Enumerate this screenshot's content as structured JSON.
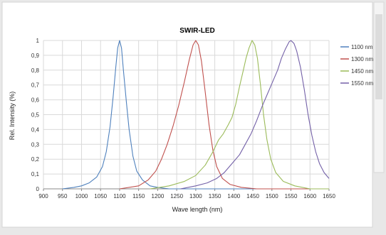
{
  "chart_data": {
    "type": "line",
    "title": "SWIR-LED",
    "xlabel": "Wave length (nm)",
    "ylabel": "Rel. Intensity (%)",
    "xlim": [
      900,
      1650
    ],
    "ylim": [
      0,
      1
    ],
    "x_ticks": [
      900,
      950,
      1000,
      1050,
      1100,
      1150,
      1200,
      1250,
      1300,
      1350,
      1400,
      1450,
      1500,
      1550,
      1600,
      1650
    ],
    "y_ticks": [
      "0",
      "0,1",
      "0,2",
      "0,3",
      "0,4",
      "0,5",
      "0,6",
      "0,7",
      "0,8",
      "0,9",
      "1"
    ],
    "grid": true,
    "legend_position": "right",
    "series": [
      {
        "name": "1100 nm",
        "color": "#4f81bd",
        "points": [
          [
            950,
            0.0
          ],
          [
            980,
            0.01
          ],
          [
            1000,
            0.02
          ],
          [
            1020,
            0.04
          ],
          [
            1040,
            0.08
          ],
          [
            1055,
            0.15
          ],
          [
            1065,
            0.25
          ],
          [
            1075,
            0.42
          ],
          [
            1083,
            0.62
          ],
          [
            1090,
            0.82
          ],
          [
            1095,
            0.95
          ],
          [
            1100,
            1.0
          ],
          [
            1105,
            0.95
          ],
          [
            1110,
            0.8
          ],
          [
            1118,
            0.58
          ],
          [
            1125,
            0.4
          ],
          [
            1135,
            0.22
          ],
          [
            1145,
            0.12
          ],
          [
            1160,
            0.06
          ],
          [
            1180,
            0.02
          ],
          [
            1200,
            0.01
          ],
          [
            1230,
            0.0
          ],
          [
            1650,
            0.0
          ]
        ]
      },
      {
        "name": "1300 nm",
        "color": "#c0504d",
        "points": [
          [
            1100,
            0.0
          ],
          [
            1150,
            0.02
          ],
          [
            1175,
            0.06
          ],
          [
            1195,
            0.12
          ],
          [
            1210,
            0.2
          ],
          [
            1225,
            0.3
          ],
          [
            1240,
            0.42
          ],
          [
            1255,
            0.56
          ],
          [
            1270,
            0.72
          ],
          [
            1283,
            0.87
          ],
          [
            1293,
            0.97
          ],
          [
            1300,
            1.0
          ],
          [
            1307,
            0.97
          ],
          [
            1315,
            0.86
          ],
          [
            1325,
            0.65
          ],
          [
            1335,
            0.43
          ],
          [
            1345,
            0.26
          ],
          [
            1355,
            0.15
          ],
          [
            1370,
            0.07
          ],
          [
            1390,
            0.03
          ],
          [
            1420,
            0.01
          ],
          [
            1460,
            0.0
          ],
          [
            1650,
            0.0
          ]
        ]
      },
      {
        "name": "1450 nm",
        "color": "#9bbb59",
        "points": [
          [
            1180,
            0.0
          ],
          [
            1230,
            0.02
          ],
          [
            1270,
            0.05
          ],
          [
            1300,
            0.09
          ],
          [
            1325,
            0.16
          ],
          [
            1345,
            0.25
          ],
          [
            1360,
            0.33
          ],
          [
            1372,
            0.37
          ],
          [
            1385,
            0.43
          ],
          [
            1395,
            0.48
          ],
          [
            1405,
            0.57
          ],
          [
            1415,
            0.69
          ],
          [
            1425,
            0.8
          ],
          [
            1432,
            0.88
          ],
          [
            1440,
            0.95
          ],
          [
            1448,
            1.0
          ],
          [
            1455,
            0.97
          ],
          [
            1462,
            0.88
          ],
          [
            1470,
            0.7
          ],
          [
            1478,
            0.5
          ],
          [
            1487,
            0.33
          ],
          [
            1497,
            0.2
          ],
          [
            1510,
            0.11
          ],
          [
            1530,
            0.05
          ],
          [
            1560,
            0.02
          ],
          [
            1600,
            0.0
          ],
          [
            1650,
            0.0
          ]
        ]
      },
      {
        "name": "1550 nm",
        "color": "#7461a8",
        "points": [
          [
            1260,
            0.0
          ],
          [
            1300,
            0.02
          ],
          [
            1330,
            0.04
          ],
          [
            1355,
            0.07
          ],
          [
            1375,
            0.11
          ],
          [
            1395,
            0.17
          ],
          [
            1415,
            0.23
          ],
          [
            1430,
            0.3
          ],
          [
            1445,
            0.37
          ],
          [
            1460,
            0.46
          ],
          [
            1475,
            0.56
          ],
          [
            1490,
            0.65
          ],
          [
            1505,
            0.74
          ],
          [
            1515,
            0.8
          ],
          [
            1525,
            0.88
          ],
          [
            1535,
            0.94
          ],
          [
            1545,
            0.99
          ],
          [
            1550,
            1.0
          ],
          [
            1558,
            0.98
          ],
          [
            1565,
            0.93
          ],
          [
            1575,
            0.82
          ],
          [
            1585,
            0.67
          ],
          [
            1595,
            0.5
          ],
          [
            1605,
            0.36
          ],
          [
            1615,
            0.25
          ],
          [
            1625,
            0.17
          ],
          [
            1637,
            0.11
          ],
          [
            1650,
            0.07
          ]
        ]
      }
    ]
  }
}
